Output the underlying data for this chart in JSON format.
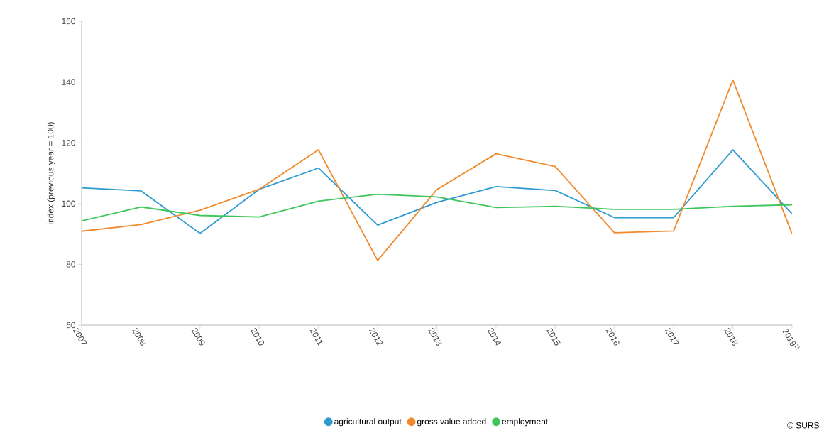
{
  "chart_data": {
    "type": "line",
    "ylabel": "index (previous year = 100)",
    "categories": [
      "2007",
      "2008",
      "2009",
      "2010",
      "2011",
      "2012",
      "2013",
      "2014",
      "2015",
      "2016",
      "2017",
      "2018",
      "2019$^{1)}$"
    ],
    "series": [
      {
        "name": "agricultural output",
        "color": "#2e9bd0",
        "values": [
          105.2,
          104.2,
          90.2,
          104.7,
          111.7,
          92.9,
          100.4,
          105.6,
          104.3,
          95.4,
          95.4,
          117.7,
          96.6
        ]
      },
      {
        "name": "gross value added",
        "color": "#f08a2c",
        "values": [
          90.9,
          93.1,
          97.8,
          104.7,
          117.7,
          81.3,
          104.6,
          116.4,
          112.2,
          90.4,
          91.0,
          140.7,
          90.0
        ]
      },
      {
        "name": "employment",
        "color": "#3fc65a",
        "values": [
          94.3,
          98.9,
          96.1,
          95.6,
          100.8,
          103.1,
          102.2,
          98.7,
          99.1,
          98.1,
          98.1,
          99.1,
          99.6
        ]
      }
    ],
    "ylim": [
      60,
      160
    ],
    "yticks": [
      60,
      80,
      100,
      120,
      140,
      160
    ],
    "grid": false,
    "legend": "bottom",
    "annotations": [
      "© SURS"
    ]
  }
}
